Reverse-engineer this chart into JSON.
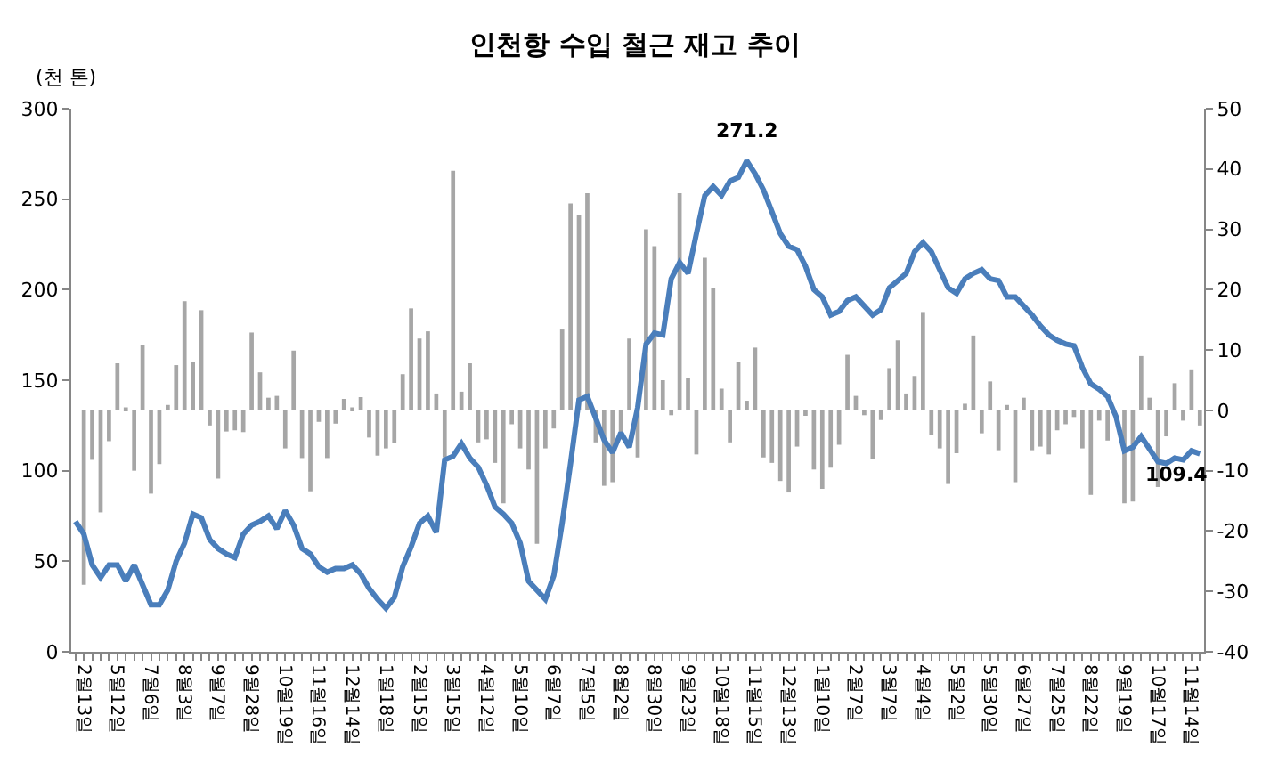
{
  "chart_data": {
    "type": "line",
    "title": "인천항 수입 철근 재고 추이",
    "ylabel": "(천 톤)",
    "categories": [
      null,
      "2월13일",
      null,
      null,
      null,
      "5월12일",
      null,
      null,
      null,
      "7월6일",
      null,
      null,
      null,
      "8월3일",
      null,
      null,
      null,
      "9월7일",
      null,
      null,
      null,
      "9월28일",
      null,
      null,
      null,
      "10월19일",
      null,
      null,
      null,
      "11월16일",
      null,
      null,
      null,
      "12월14일",
      null,
      null,
      null,
      "1월18일",
      null,
      null,
      null,
      "2월15일",
      null,
      null,
      null,
      "3월15일",
      null,
      null,
      null,
      "4월12일",
      null,
      null,
      null,
      "5월10일",
      null,
      null,
      null,
      "6월7일",
      null,
      null,
      null,
      "7월5일",
      null,
      null,
      null,
      "8월2일",
      null,
      null,
      null,
      "8월30일",
      null,
      null,
      null,
      "9월23일",
      null,
      null,
      null,
      "10월18일",
      null,
      null,
      null,
      "11월15일",
      null,
      null,
      null,
      "12월13일",
      null,
      null,
      null,
      "1월10일",
      null,
      null,
      null,
      "2월7일",
      null,
      null,
      null,
      "3월7일",
      null,
      null,
      null,
      "4월4일",
      null,
      null,
      null,
      "5월2일",
      null,
      null,
      null,
      "5월30일",
      null,
      null,
      null,
      "6월27일",
      null,
      null,
      null,
      "7월25일",
      null,
      null,
      null,
      "8월22일",
      null,
      null,
      null,
      "9월19일",
      null,
      null,
      null,
      "10월17일",
      null,
      null,
      null,
      "11월14일",
      null
    ],
    "series": [
      {
        "type": "bar",
        "axis": "y2",
        "color": "#a6a6a6",
        "values": [
          null,
          -28.9,
          -8.2,
          -16.9,
          -5.1,
          7.8,
          0.5,
          -10,
          10.9,
          -13.8,
          -8.9,
          0.9,
          7.5,
          18.1,
          8,
          16.6,
          -2.5,
          -11.3,
          -3.5,
          -3.3,
          -3.6,
          12.9,
          6.3,
          2.1,
          2.4,
          -6.3,
          9.9,
          -7.9,
          -13.4,
          -1.9,
          -7.9,
          -2.2,
          1.9,
          0.5,
          2.2,
          -4.5,
          -7.5,
          -6.3,
          -5.4,
          6,
          16.9,
          11.9,
          13.1,
          2.8,
          -7.8,
          39.7,
          3.1,
          7.8,
          -5.3,
          -4.8,
          -8.7,
          -15.4,
          -2.3,
          -6.3,
          -9.8,
          -22.1,
          -6.3,
          -3,
          13.4,
          34.3,
          32.4,
          36,
          -5.3,
          -12.5,
          -11.9,
          -4.8,
          11.9,
          -7.8,
          30,
          27.2,
          5,
          -0.8,
          36,
          5.3,
          -7.3,
          25.3,
          20.3,
          3.6,
          -5.3,
          8,
          1.6,
          10.4,
          -7.8,
          -8.7,
          -11.7,
          -13.6,
          -6,
          -0.9,
          -9.8,
          -13,
          -9.5,
          -5.7,
          9.2,
          2.4,
          -0.8,
          -8.1,
          -1.6,
          7,
          11.6,
          2.8,
          5.7,
          16.3,
          -4,
          -6.3,
          -12.2,
          -7.1,
          1.1,
          12.4,
          -3.8,
          4.8,
          -6.6,
          0.9,
          -11.9,
          2.1,
          -6.6,
          -6,
          -7.3,
          -3.3,
          -2.3,
          -1.1,
          -6.3,
          -14,
          -1.7,
          -5,
          null,
          -15.4,
          -15.1,
          9,
          2.1,
          -12.7,
          -4.3,
          4.5,
          -1.7,
          6.8,
          -2.5
        ]
      },
      {
        "color": "#4a7ebb",
        "values": [
          72,
          65,
          48,
          41,
          48,
          48,
          39,
          48,
          37,
          26,
          26,
          34,
          50,
          60,
          76,
          74,
          62,
          57,
          54,
          52,
          65,
          70,
          72,
          75,
          68,
          78,
          70,
          57,
          54,
          47,
          44,
          46,
          46,
          48,
          43,
          35,
          29,
          24,
          30,
          47,
          58,
          71,
          75,
          66,
          106,
          108,
          115,
          107,
          102,
          92,
          80,
          76,
          71,
          60,
          39,
          34,
          29,
          42,
          71,
          104,
          139,
          141,
          129,
          117,
          110,
          121,
          113,
          135,
          170,
          176,
          175,
          206,
          215,
          209,
          231,
          252,
          257,
          252,
          260,
          262,
          271.2,
          264,
          255,
          243,
          231,
          224,
          222,
          213,
          200,
          196,
          186,
          188,
          194,
          196,
          191,
          186,
          189,
          201,
          205,
          209,
          221,
          226,
          221,
          211,
          201,
          198,
          206,
          209,
          211,
          206,
          205,
          196,
          196,
          191,
          186,
          180,
          175,
          172,
          170,
          169,
          157,
          148,
          145,
          141,
          130,
          111,
          113,
          119,
          112,
          105,
          104,
          107,
          106,
          111,
          109.4
        ]
      }
    ],
    "ylim": [
      0,
      300
    ],
    "yticks": [
      0,
      50,
      100,
      150,
      200,
      250,
      300
    ],
    "y2lim": [
      -40,
      50
    ],
    "y2ticks": [
      -40,
      -30,
      -20,
      -10,
      0,
      10,
      20,
      30,
      40,
      50
    ],
    "annotations": [
      {
        "text": "271.2",
        "y": 271.2
      },
      {
        "text": "109.4",
        "y": 109.4
      }
    ]
  }
}
